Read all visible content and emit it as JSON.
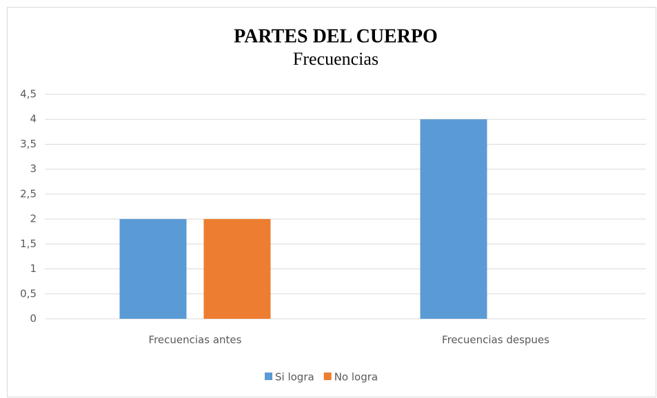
{
  "chart_data": {
    "type": "bar",
    "title": "PARTES DEL CUERPO",
    "subtitle": "Frecuencias",
    "categories": [
      "Frecuencias antes",
      "Frecuencias despues"
    ],
    "series": [
      {
        "name": "Si logra",
        "color": "#5b9bd5",
        "values": [
          2,
          4
        ]
      },
      {
        "name": "No logra",
        "color": "#ed7d31",
        "values": [
          2,
          0
        ]
      }
    ],
    "ylim": [
      0,
      4.5
    ],
    "yticks": [
      0,
      {
        "value": 0.5,
        "label": "0,5"
      },
      1,
      {
        "value": 1.5,
        "label": "1,5"
      },
      2,
      {
        "value": 2.5,
        "label": "2,5"
      },
      3,
      {
        "value": 3.5,
        "label": "3,5"
      },
      4,
      {
        "value": 4.5,
        "label": "4,5"
      }
    ],
    "grid": true,
    "legend": "bottom"
  }
}
